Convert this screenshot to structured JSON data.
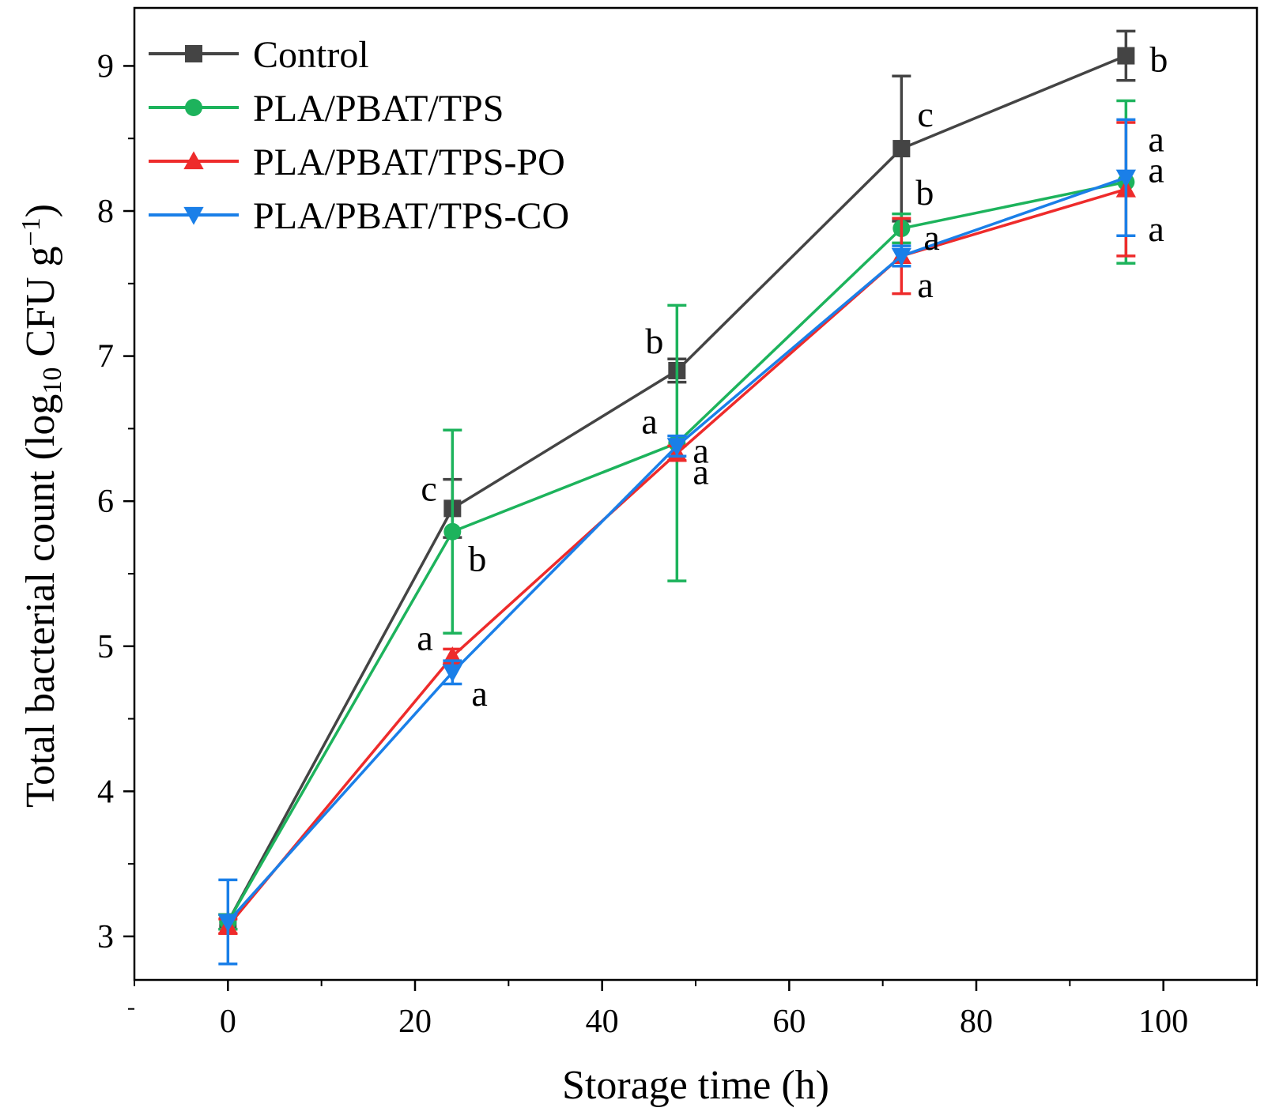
{
  "chart_data": {
    "type": "line",
    "title": "",
    "xlabel": "Storage time (h)",
    "ylabel": "Total bacterial count (log",
    "ylabel_sub": "10",
    "ylabel_tail": " CFU g",
    "ylabel_sup": "−1",
    "ylabel_close": ")",
    "xlim": [
      -10,
      110
    ],
    "ylim": [
      2.7,
      9.4
    ],
    "xticks": [
      0,
      20,
      40,
      60,
      80,
      100
    ],
    "yticks": [
      3,
      4,
      5,
      6,
      7,
      8,
      9
    ],
    "legend_position": "top-left",
    "x": [
      0,
      24,
      48,
      72,
      96
    ],
    "series": [
      {
        "name": "Control",
        "color": "#444444",
        "marker": "square",
        "values": [
          3.1,
          5.95,
          6.9,
          8.43,
          9.07
        ],
        "errors": [
          0.05,
          0.2,
          0.08,
          0.5,
          0.17
        ],
        "letters": [
          "",
          "c",
          "b",
          "c",
          "b"
        ]
      },
      {
        "name": "PLA/PBAT/TPS",
        "color": "#1db35c",
        "marker": "circle",
        "values": [
          3.1,
          5.79,
          6.4,
          7.88,
          8.2
        ],
        "errors": [
          0.05,
          0.7,
          0.95,
          0.1,
          0.56
        ],
        "letters": [
          "",
          "b",
          "a",
          "b",
          "a"
        ]
      },
      {
        "name": "PLA/PBAT/TPS-PO",
        "color": "#ee2b2b",
        "marker": "triangle-up",
        "values": [
          3.07,
          4.93,
          6.33,
          7.69,
          8.15
        ],
        "errors": [
          0.05,
          0.05,
          0.05,
          0.26,
          0.46
        ],
        "letters": [
          "",
          "a",
          "a",
          "a",
          "a"
        ]
      },
      {
        "name": "PLA/PBAT/TPS-CO",
        "color": "#1a7fe8",
        "marker": "triangle-down",
        "values": [
          3.1,
          4.82,
          6.38,
          7.69,
          8.23
        ],
        "errors": [
          0.29,
          0.08,
          0.07,
          0.07,
          0.4
        ],
        "letters": [
          "",
          "a",
          "a",
          "a",
          "a"
        ]
      }
    ]
  }
}
